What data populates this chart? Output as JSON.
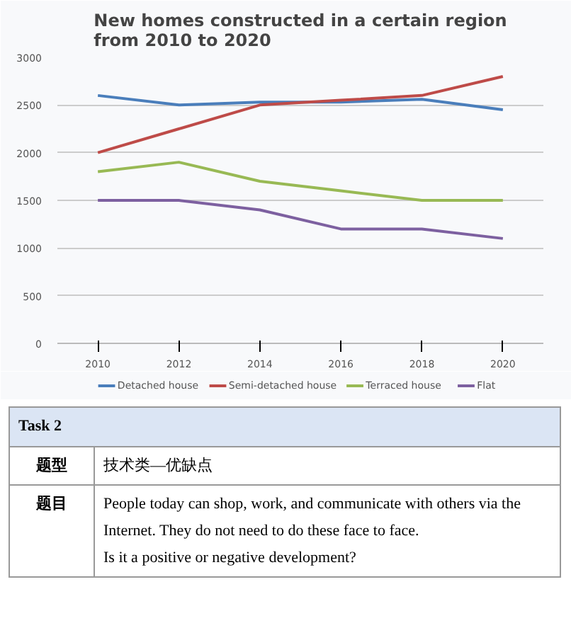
{
  "chart_data": {
    "type": "line",
    "title": "New homes constructed in a certain region\nfrom 2010 to 2020",
    "x": [
      2010,
      2012,
      2014,
      2016,
      2018,
      2020
    ],
    "series": [
      {
        "name": "Detached house",
        "color": "#4a7ebb",
        "values": [
          2600,
          2500,
          2530,
          2530,
          2560,
          2450
        ]
      },
      {
        "name": "Semi-detached house",
        "color": "#be4b48",
        "values": [
          2000,
          2250,
          2500,
          2550,
          2600,
          2800
        ]
      },
      {
        "name": "Terraced house",
        "color": "#98b954",
        "values": [
          1800,
          1900,
          1700,
          1600,
          1500,
          1500
        ]
      },
      {
        "name": "Flat",
        "color": "#7d60a0",
        "values": [
          1500,
          1500,
          1400,
          1200,
          1200,
          1100
        ]
      }
    ],
    "xlim": [
      2009,
      2021
    ],
    "xticks": [
      2010,
      2012,
      2014,
      2016,
      2018,
      2020
    ],
    "ylim": [
      0,
      3000
    ],
    "yticks": [
      0,
      500,
      1000,
      1500,
      2000,
      2500,
      3000
    ],
    "grid": "y",
    "legend": "bottom",
    "marker": "none",
    "line_style": "solid",
    "annotations": [
      "Task 2",
      "题型",
      "技术类—优缺点",
      "题目",
      "People today can shop, work, and communicate with others via the Internet. They do not need to do these face to face.",
      "Is it a positive or negative development?"
    ]
  }
}
